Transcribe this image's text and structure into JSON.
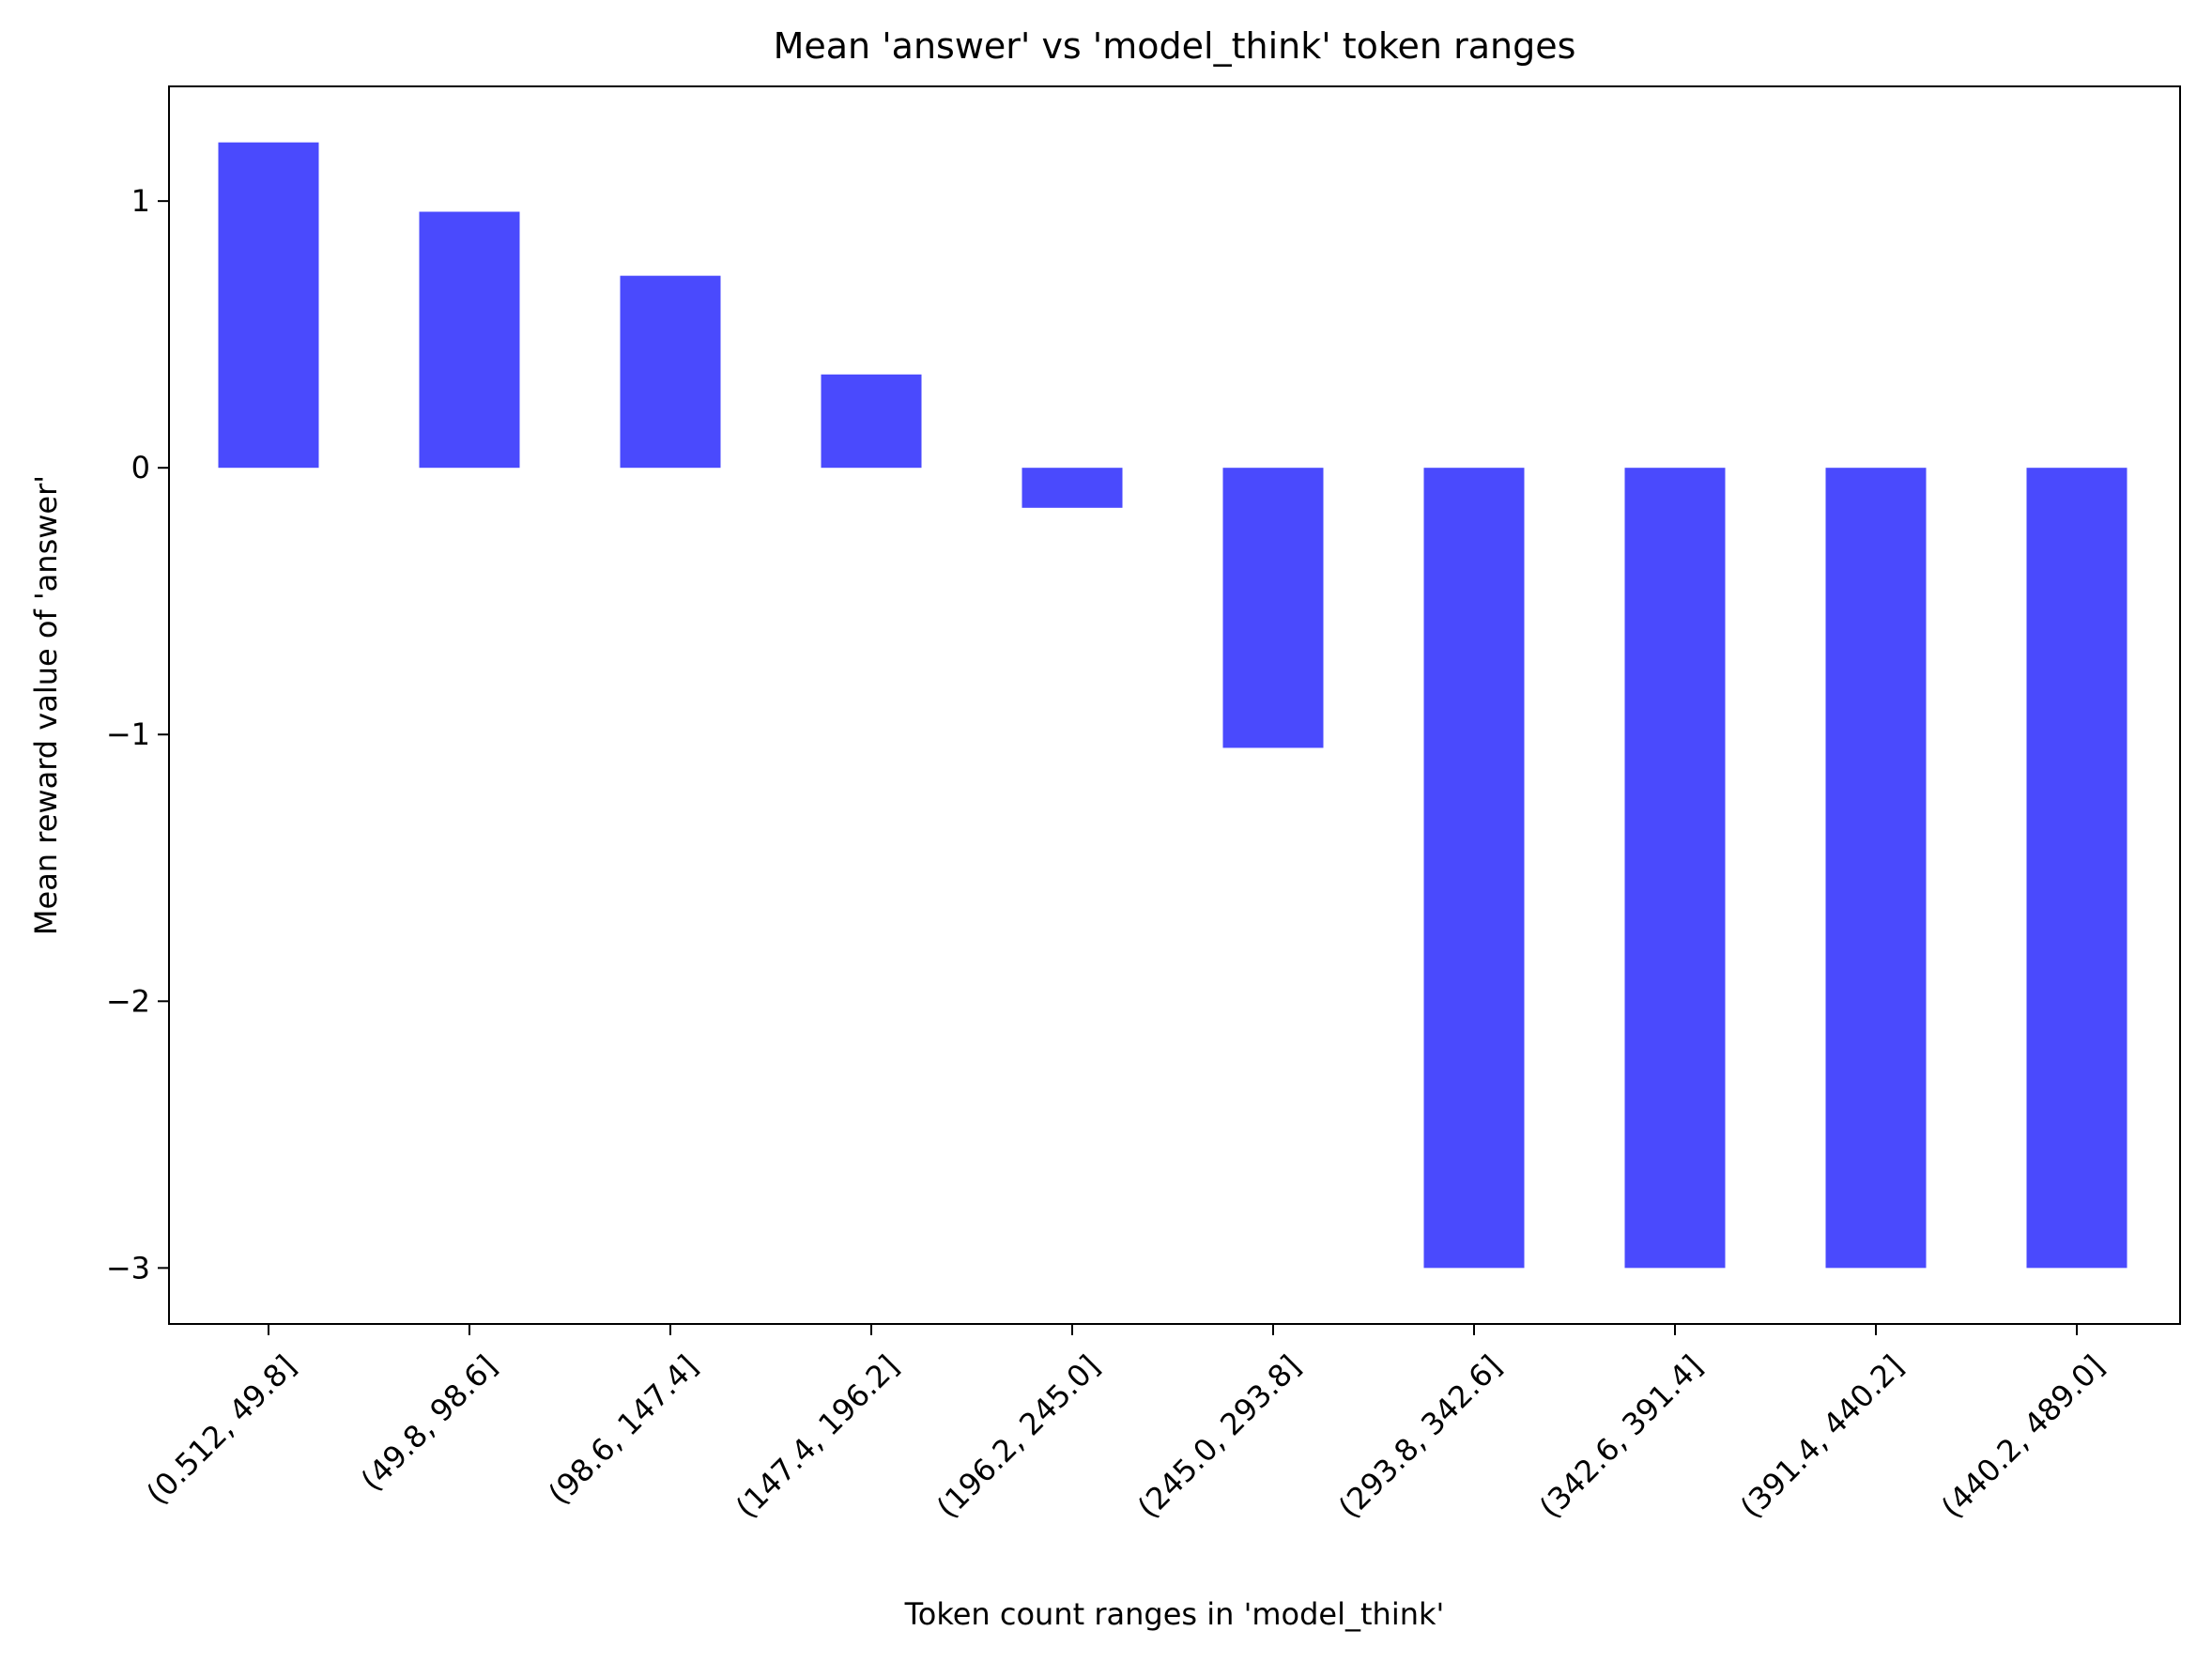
{
  "chart_data": {
    "type": "bar",
    "title": "Mean 'answer' vs 'model_think' token ranges",
    "xlabel": "Token count ranges in 'model_think'",
    "ylabel": "Mean reward value of 'answer'",
    "categories": [
      "(0.512, 49.8]",
      "(49.8, 98.6]",
      "(98.6, 147.4]",
      "(147.4, 196.2]",
      "(196.2, 245.0]",
      "(245.0, 293.8]",
      "(293.8, 342.6]",
      "(342.6, 391.4]",
      "(391.4, 440.2]",
      "(440.2, 489.0]"
    ],
    "values": [
      1.22,
      0.96,
      0.72,
      0.35,
      -0.15,
      -1.05,
      -3.0,
      -3.0,
      -3.0,
      -3.0
    ],
    "yticks": [
      1,
      0,
      -1,
      -2,
      -3
    ],
    "ytick_labels": [
      "1",
      "0",
      "−1",
      "−2",
      "−3"
    ],
    "ylim": [
      -3.21,
      1.43
    ],
    "bar_color": "#4a4afd",
    "grid": false,
    "legend": "none"
  }
}
